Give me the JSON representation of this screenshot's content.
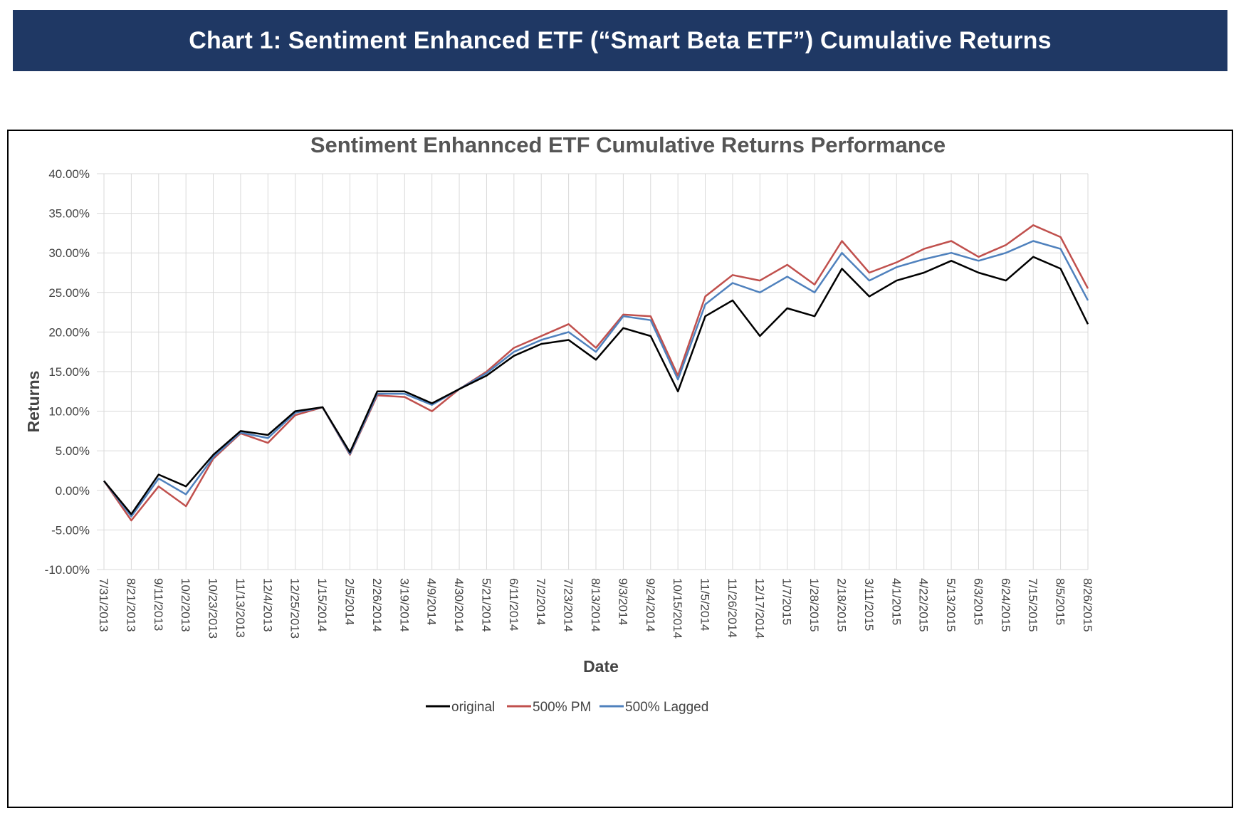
{
  "banner": {
    "title": "Chart 1: Sentiment Enhanced ETF (“Smart Beta ETF”) Cumulative Returns"
  },
  "colors": {
    "banner_bg": "#1f3864",
    "original": "#000000",
    "pm": "#c0504d",
    "lagged": "#4f81bd",
    "grid": "#d9d9d9"
  },
  "chart_data": {
    "type": "line",
    "title": "Sentiment Enhannced ETF Cumulative Returns Performance",
    "xlabel": "Date",
    "ylabel": "Returns",
    "ylim": [
      -0.1,
      0.4
    ],
    "y_ticks": [
      "40.00%",
      "35.00%",
      "30.00%",
      "25.00%",
      "20.00%",
      "15.00%",
      "10.00%",
      "5.00%",
      "0.00%",
      "-5.00%",
      "-10.00%"
    ],
    "x_ticks": [
      "7/31/2013",
      "8/21/2013",
      "9/11/2013",
      "10/2/2013",
      "10/23/2013",
      "11/13/2013",
      "12/4/2013",
      "12/25/2013",
      "1/15/2014",
      "2/5/2014",
      "2/26/2014",
      "3/19/2014",
      "4/9/2014",
      "4/30/2014",
      "5/21/2014",
      "6/11/2014",
      "7/2/2014",
      "7/23/2014",
      "8/13/2014",
      "9/3/2014",
      "9/24/2014",
      "10/15/2014",
      "11/5/2014",
      "11/26/2014",
      "12/17/2014",
      "1/7/2015",
      "1/28/2015",
      "2/18/2015",
      "3/11/2015",
      "4/1/2015",
      "4/22/2015",
      "5/13/2015",
      "6/3/2015",
      "6/24/2015",
      "7/15/2015",
      "8/5/2015",
      "8/26/2015"
    ],
    "grid": true,
    "legend_position": "bottom",
    "x": [
      "7/31/2013",
      "8/21/2013",
      "9/11/2013",
      "10/2/2013",
      "10/23/2013",
      "11/13/2013",
      "12/4/2013",
      "12/25/2013",
      "1/15/2014",
      "2/5/2014",
      "2/26/2014",
      "3/19/2014",
      "4/9/2014",
      "4/30/2014",
      "5/21/2014",
      "6/11/2014",
      "7/2/2014",
      "7/23/2014",
      "8/13/2014",
      "9/3/2014",
      "9/24/2014",
      "10/15/2014",
      "11/5/2014",
      "11/26/2014",
      "12/17/2014",
      "1/7/2015",
      "1/28/2015",
      "2/18/2015",
      "3/11/2015",
      "4/1/2015",
      "4/22/2015",
      "5/13/2015",
      "6/3/2015",
      "6/24/2015",
      "7/15/2015",
      "8/5/2015",
      "8/26/2015"
    ],
    "series": [
      {
        "name": "original",
        "color": "#000000",
        "values": [
          0.012,
          -0.03,
          0.02,
          0.005,
          0.045,
          0.075,
          0.07,
          0.1,
          0.105,
          0.048,
          0.125,
          0.125,
          0.11,
          0.128,
          0.145,
          0.17,
          0.185,
          0.19,
          0.165,
          0.205,
          0.195,
          0.125,
          0.22,
          0.24,
          0.195,
          0.23,
          0.22,
          0.28,
          0.245,
          0.265,
          0.275,
          0.29,
          0.275,
          0.265,
          0.295,
          0.28,
          0.21
        ]
      },
      {
        "name": "500% PM",
        "color": "#c0504d",
        "values": [
          0.012,
          -0.038,
          0.005,
          -0.02,
          0.04,
          0.072,
          0.06,
          0.095,
          0.105,
          0.045,
          0.12,
          0.118,
          0.1,
          0.128,
          0.15,
          0.18,
          0.195,
          0.21,
          0.18,
          0.222,
          0.22,
          0.145,
          0.245,
          0.272,
          0.265,
          0.285,
          0.26,
          0.315,
          0.275,
          0.288,
          0.305,
          0.315,
          0.295,
          0.31,
          0.335,
          0.32,
          0.255
        ]
      },
      {
        "name": "500% Lagged",
        "color": "#4f81bd",
        "values": [
          0.012,
          -0.033,
          0.015,
          -0.005,
          0.042,
          0.073,
          0.066,
          0.098,
          0.105,
          0.046,
          0.122,
          0.122,
          0.108,
          0.128,
          0.148,
          0.175,
          0.19,
          0.2,
          0.175,
          0.22,
          0.215,
          0.14,
          0.235,
          0.262,
          0.25,
          0.27,
          0.25,
          0.3,
          0.265,
          0.282,
          0.292,
          0.3,
          0.29,
          0.3,
          0.315,
          0.305,
          0.24
        ]
      }
    ]
  }
}
